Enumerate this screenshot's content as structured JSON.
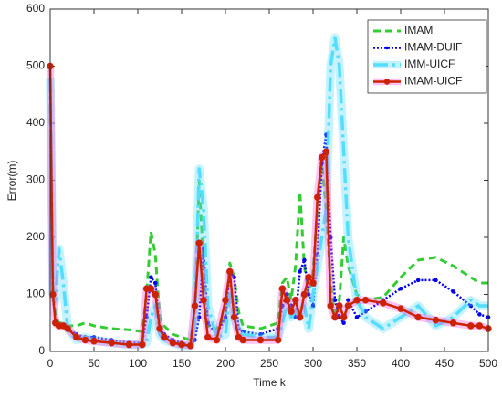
{
  "chart_data": {
    "type": "line",
    "x_label": "Time k",
    "y_label": "Error(m)",
    "xlim": [
      0,
      500
    ],
    "ylim": [
      0,
      600
    ],
    "xticks": [
      0,
      50,
      100,
      150,
      200,
      250,
      300,
      350,
      400,
      450,
      500
    ],
    "yticks": [
      0,
      100,
      200,
      300,
      400,
      500,
      600
    ],
    "grid": false,
    "legend": "upper right",
    "x": [
      0,
      3,
      6,
      10,
      15,
      20,
      30,
      40,
      50,
      70,
      90,
      105,
      110,
      115,
      120,
      125,
      130,
      140,
      150,
      160,
      165,
      170,
      175,
      180,
      190,
      200,
      205,
      210,
      215,
      220,
      240,
      260,
      265,
      270,
      275,
      280,
      285,
      290,
      295,
      300,
      305,
      310,
      315,
      320,
      325,
      330,
      335,
      340,
      350,
      360,
      380,
      400,
      420,
      440,
      460,
      480,
      490,
      500
    ],
    "series": [
      {
        "name": "IMAM",
        "color": "#33cc33",
        "values": [
          430,
          120,
          60,
          50,
          50,
          45,
          45,
          50,
          45,
          40,
          38,
          35,
          100,
          210,
          170,
          60,
          45,
          30,
          25,
          20,
          60,
          300,
          150,
          40,
          40,
          60,
          155,
          130,
          70,
          45,
          40,
          50,
          120,
          130,
          90,
          150,
          280,
          150,
          100,
          140,
          250,
          330,
          250,
          120,
          60,
          90,
          200,
          150,
          100,
          90,
          95,
          130,
          160,
          165,
          150,
          130,
          120,
          120
        ]
      },
      {
        "name": "IMAM-DUIF",
        "color": "#0000ee",
        "values": [
          500,
          100,
          50,
          45,
          45,
          40,
          30,
          25,
          25,
          20,
          15,
          15,
          60,
          130,
          120,
          40,
          30,
          20,
          15,
          10,
          20,
          60,
          180,
          50,
          30,
          60,
          140,
          130,
          40,
          35,
          30,
          40,
          80,
          100,
          80,
          60,
          140,
          160,
          100,
          80,
          170,
          330,
          380,
          200,
          90,
          60,
          50,
          90,
          60,
          70,
          90,
          110,
          125,
          125,
          105,
          80,
          65,
          60
        ]
      },
      {
        "name": "IMM-UICF",
        "color": "#55ddff",
        "values": [
          480,
          100,
          90,
          180,
          120,
          40,
          20,
          25,
          20,
          15,
          12,
          12,
          15,
          60,
          80,
          30,
          20,
          15,
          10,
          10,
          50,
          320,
          250,
          80,
          25,
          30,
          100,
          60,
          40,
          30,
          25,
          25,
          50,
          80,
          60,
          70,
          60,
          80,
          40,
          100,
          150,
          200,
          250,
          500,
          550,
          500,
          350,
          200,
          90,
          60,
          40,
          60,
          80,
          45,
          60,
          90,
          80,
          80
        ]
      },
      {
        "name": "IMAM-UICF",
        "color": "#cc2200",
        "values": [
          500,
          100,
          50,
          45,
          45,
          40,
          25,
          20,
          18,
          15,
          12,
          12,
          110,
          110,
          100,
          40,
          25,
          15,
          12,
          10,
          80,
          190,
          90,
          25,
          20,
          90,
          140,
          60,
          25,
          20,
          20,
          20,
          110,
          90,
          70,
          90,
          60,
          100,
          130,
          120,
          270,
          340,
          350,
          80,
          60,
          80,
          60,
          80,
          90,
          90,
          85,
          75,
          60,
          55,
          50,
          45,
          45,
          40
        ]
      }
    ]
  }
}
